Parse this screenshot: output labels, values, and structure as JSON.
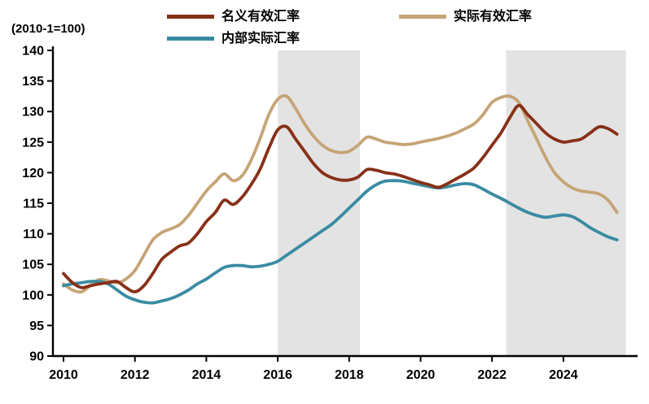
{
  "unit_label": "(2010-1=100)",
  "legend": [
    {
      "label": "名义有效汇率",
      "color": "#873118"
    },
    {
      "label": "实际有效汇率",
      "color": "#C6A476"
    },
    {
      "label": "内部实际汇率",
      "color": "#3A8BA2"
    }
  ],
  "chart_data": {
    "type": "line",
    "title": "",
    "xlabel": "",
    "ylabel": "(2010-1=100)",
    "ylim": [
      90,
      140
    ],
    "xlim": [
      2010,
      2025.75
    ],
    "y_ticks": [
      90,
      95,
      100,
      105,
      110,
      115,
      120,
      125,
      130,
      135,
      140
    ],
    "x_ticks": [
      2010,
      2012,
      2014,
      2016,
      2018,
      2020,
      2022,
      2024
    ],
    "grid": false,
    "legend_position": "top",
    "x_start": 2010,
    "x_step": 0.25,
    "shaded_regions": [
      {
        "from": 2016.0,
        "to": 2018.3,
        "color": "#E3E3E3"
      },
      {
        "from": 2022.4,
        "to": 2025.75,
        "color": "#E3E3E3"
      }
    ],
    "series": [
      {
        "name": "名义有效汇率",
        "color": "#873118",
        "values": [
          103.5,
          102.0,
          101.2,
          101.5,
          101.8,
          102.0,
          102.2,
          101.2,
          100.5,
          101.5,
          103.5,
          105.8,
          107.0,
          108.0,
          108.5,
          110.0,
          112.0,
          113.5,
          115.5,
          114.8,
          116.0,
          118.0,
          120.5,
          124.0,
          127.0,
          127.5,
          125.5,
          123.5,
          121.5,
          120.0,
          119.2,
          118.8,
          118.8,
          119.3,
          120.5,
          120.4,
          120.0,
          119.8,
          119.4,
          118.9,
          118.4,
          118.0,
          117.6,
          118.2,
          119.0,
          119.8,
          120.8,
          122.5,
          124.5,
          126.5,
          129.0,
          131.0,
          129.5,
          128.0,
          126.5,
          125.5,
          125.0,
          125.2,
          125.5,
          126.5,
          127.5,
          127.2,
          126.3
        ]
      },
      {
        "name": "实际有效汇率",
        "color": "#C6A476",
        "values": [
          101.8,
          100.8,
          100.5,
          101.5,
          102.5,
          102.3,
          102.0,
          102.6,
          104.0,
          106.5,
          109.0,
          110.2,
          110.8,
          111.5,
          113.0,
          115.0,
          117.0,
          118.5,
          119.8,
          118.7,
          119.5,
          122.0,
          125.5,
          129.5,
          132.0,
          132.5,
          130.5,
          128.0,
          126.0,
          124.5,
          123.6,
          123.3,
          123.5,
          124.5,
          125.8,
          125.5,
          125.0,
          124.8,
          124.6,
          124.7,
          125.0,
          125.3,
          125.6,
          126.0,
          126.5,
          127.2,
          128.0,
          129.5,
          131.5,
          132.3,
          132.5,
          131.5,
          128.5,
          125.5,
          122.5,
          120.0,
          118.5,
          117.5,
          117.0,
          116.8,
          116.5,
          115.5,
          113.5
        ]
      },
      {
        "name": "内部实际汇率",
        "color": "#3A8BA2",
        "values": [
          101.5,
          101.8,
          102.0,
          102.2,
          102.2,
          101.8,
          100.8,
          99.8,
          99.2,
          98.8,
          98.7,
          99.0,
          99.4,
          100.0,
          100.8,
          101.8,
          102.6,
          103.6,
          104.5,
          104.8,
          104.8,
          104.6,
          104.7,
          105.0,
          105.5,
          106.5,
          107.5,
          108.5,
          109.5,
          110.5,
          111.5,
          112.8,
          114.2,
          115.6,
          117.0,
          118.0,
          118.6,
          118.7,
          118.6,
          118.3,
          118.0,
          117.7,
          117.5,
          117.7,
          118.0,
          118.2,
          118.0,
          117.3,
          116.5,
          115.8,
          115.0,
          114.2,
          113.5,
          113.0,
          112.7,
          112.9,
          113.1,
          112.8,
          112.0,
          111.0,
          110.2,
          109.5,
          109.0
        ]
      }
    ]
  }
}
